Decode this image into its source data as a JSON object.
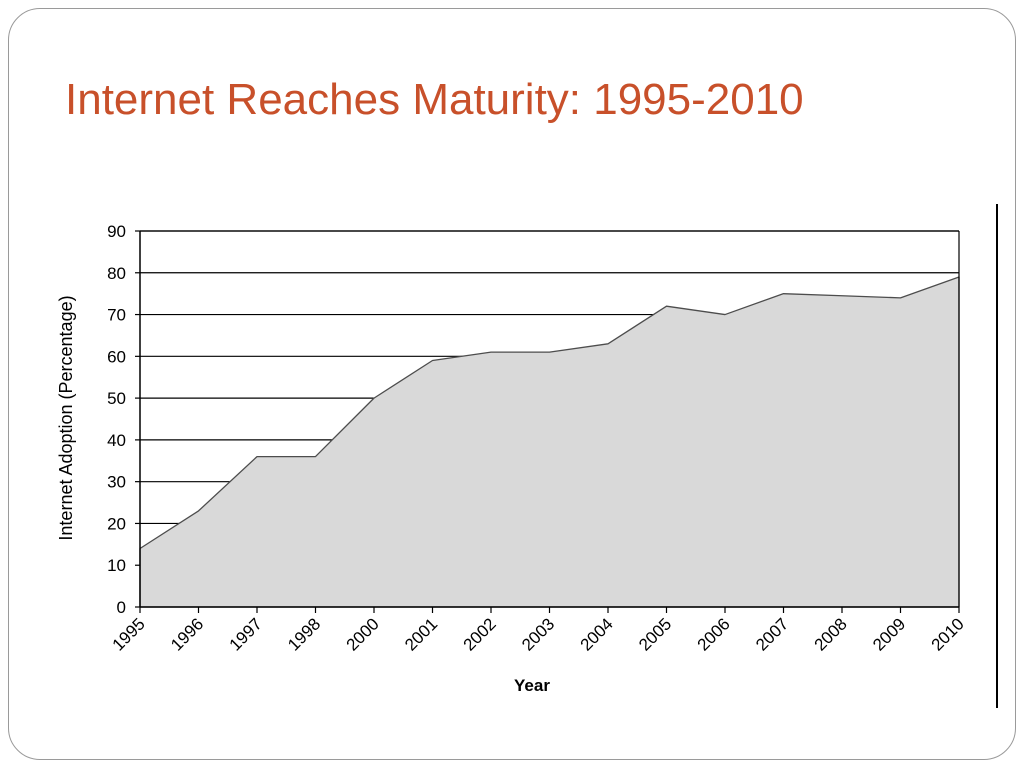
{
  "slide": {
    "title": "Internet Reaches Maturity: 1995-2010"
  },
  "colors": {
    "title": "#c8502a",
    "area_fill": "#d9d9d9",
    "area_line": "#4d4d4d",
    "grid": "#000000"
  },
  "chart_data": {
    "type": "area",
    "title": "",
    "xlabel": "Year",
    "ylabel": "Internet Adoption (Percentage)",
    "ylim": [
      0,
      90
    ],
    "yticks": [
      0,
      10,
      20,
      30,
      40,
      50,
      60,
      70,
      80,
      90
    ],
    "grid": "horizontal",
    "legend": "none",
    "categories": [
      "1995",
      "1996",
      "1997",
      "1998",
      "2000",
      "2001",
      "2002",
      "2003",
      "2004",
      "2005",
      "2006",
      "2007",
      "2008",
      "2009",
      "2010"
    ],
    "series": [
      {
        "values": [
          14,
          23,
          36,
          36,
          50,
          59,
          61,
          61,
          63,
          72,
          70,
          75,
          74.5,
          74,
          79
        ]
      }
    ]
  }
}
